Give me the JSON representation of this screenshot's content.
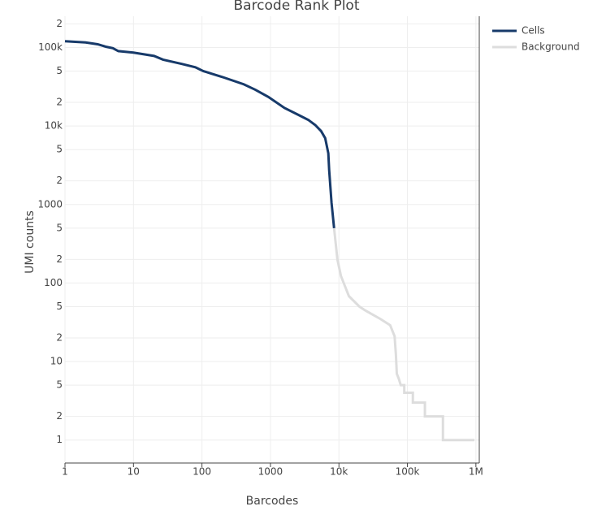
{
  "chart_data": {
    "type": "line",
    "title": "Barcode Rank Plot",
    "x_label": "Barcodes",
    "y_label": "UMI counts",
    "x_log": true,
    "y_log": true,
    "grid": true,
    "legend": "top-right",
    "xlim": [
      1,
      1120000
    ],
    "ylim": [
      0.51,
      250000
    ],
    "xticks": [
      1,
      10,
      100,
      1000,
      {
        "value": 10000,
        "label": "10k"
      },
      {
        "value": 100000,
        "label": "100k"
      },
      {
        "value": 1000000,
        "label": "1M"
      }
    ],
    "yticks": [
      1,
      2,
      5,
      10,
      {
        "value": 20,
        "label": "2"
      },
      {
        "value": 50,
        "label": "5"
      },
      100,
      {
        "value": 200,
        "label": "2"
      },
      {
        "value": 500,
        "label": "5"
      },
      1000,
      {
        "value": 2000,
        "label": "2"
      },
      {
        "value": 5000,
        "label": "5"
      },
      {
        "value": 10000,
        "label": "10k"
      },
      {
        "value": 20000,
        "label": "2"
      },
      {
        "value": 50000,
        "label": "5"
      },
      {
        "value": 100000,
        "label": "100k"
      },
      {
        "value": 200000,
        "label": "2"
      }
    ],
    "series": [
      {
        "name": "Cells",
        "color": "#173a6a",
        "x": [
          1,
          2,
          3,
          4,
          5,
          6,
          10,
          20,
          27,
          50,
          80,
          105,
          200,
          407,
          600,
          930,
          1600,
          2500,
          3600,
          4500,
          5500,
          6300,
          7000,
          7200,
          7800,
          8500
        ],
        "values": [
          120000,
          116000,
          110000,
          102000,
          98000,
          90000,
          86000,
          78000,
          70000,
          62000,
          56000,
          50000,
          42000,
          34000,
          29000,
          23500,
          17000,
          14000,
          11900,
          10300,
          8600,
          7000,
          4500,
          2750,
          1050,
          500
        ]
      },
      {
        "name": "Background",
        "color": "#dddddd",
        "x": [
          8500,
          9500,
          10700,
          14000,
          20000,
          24000,
          40000,
          56000,
          65000,
          68000,
          70000,
          75000,
          80000,
          90000,
          90000,
          120000,
          120000,
          180000,
          180000,
          330000,
          330000,
          950000
        ],
        "values": [
          500,
          200,
          123,
          68,
          50,
          45,
          35,
          29,
          21,
          12,
          7,
          6,
          5,
          5,
          4,
          4,
          3,
          3,
          2,
          2,
          1,
          1
        ]
      }
    ]
  }
}
